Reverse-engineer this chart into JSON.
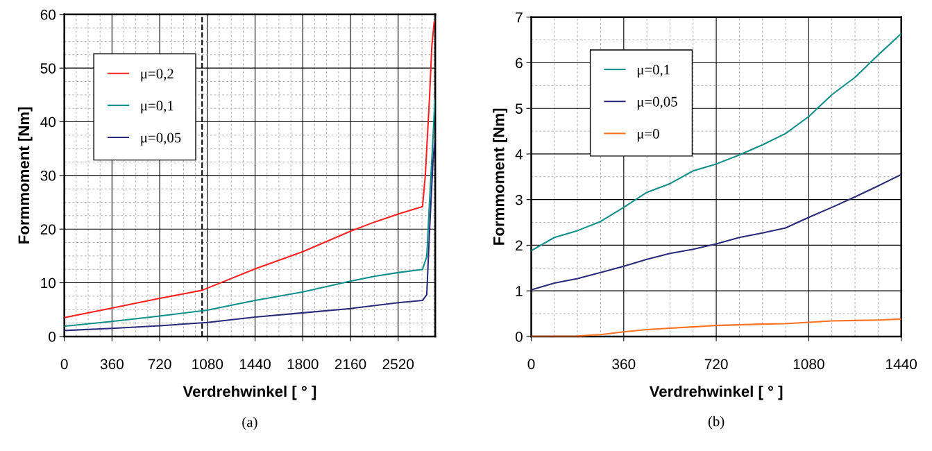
{
  "chart_data": [
    {
      "type": "line",
      "xlabel": "Verdrehwinkel [ ° ]",
      "ylabel": "Formmoment [Nm]",
      "annotations": [
        "(a)"
      ],
      "legend": "top left",
      "grid": true,
      "line_style": "solid",
      "marker": "none",
      "xlim": [
        0,
        2800
      ],
      "ylim": [
        0,
        60
      ],
      "xticks": [
        0,
        360,
        720,
        1080,
        1440,
        1800,
        2160,
        2520,
        {
          "value": 90,
          "label": null
        },
        {
          "value": 180,
          "label": null
        },
        {
          "value": 270,
          "label": null
        },
        {
          "value": 450,
          "label": null
        },
        {
          "value": 540,
          "label": null
        },
        {
          "value": 630,
          "label": null
        },
        {
          "value": 810,
          "label": null
        },
        {
          "value": 900,
          "label": null
        },
        {
          "value": 990,
          "label": null
        },
        {
          "value": 1170,
          "label": null
        },
        {
          "value": 1260,
          "label": null
        },
        {
          "value": 1350,
          "label": null
        },
        {
          "value": 1530,
          "label": null
        },
        {
          "value": 1620,
          "label": null
        },
        {
          "value": 1710,
          "label": null
        },
        {
          "value": 1890,
          "label": null
        },
        {
          "value": 1980,
          "label": null
        },
        {
          "value": 2070,
          "label": null
        },
        {
          "value": 2250,
          "label": null
        },
        {
          "value": 2340,
          "label": null
        },
        {
          "value": 2430,
          "label": null
        },
        {
          "value": 2610,
          "label": null
        },
        {
          "value": 2700,
          "label": null
        },
        {
          "value": 2790,
          "label": null
        }
      ],
      "yticks": [
        0,
        10,
        20,
        30,
        40,
        50,
        60,
        {
          "value": 2.5,
          "label": null
        },
        {
          "value": 5,
          "label": null
        },
        {
          "value": 7.5,
          "label": null
        },
        {
          "value": 12.5,
          "label": null
        },
        {
          "value": 15,
          "label": null
        },
        {
          "value": 17.5,
          "label": null
        },
        {
          "value": 22.5,
          "label": null
        },
        {
          "value": 25,
          "label": null
        },
        {
          "value": 27.5,
          "label": null
        },
        {
          "value": 32.5,
          "label": null
        },
        {
          "value": 35,
          "label": null
        },
        {
          "value": 37.5,
          "label": null
        },
        {
          "value": 42.5,
          "label": null
        },
        {
          "value": 45,
          "label": null
        },
        {
          "value": 47.5,
          "label": null
        },
        {
          "value": 52.5,
          "label": null
        },
        {
          "value": 55,
          "label": null
        },
        {
          "value": 57.5,
          "label": null
        }
      ],
      "ref_lines": [
        {
          "axis": "x",
          "value": 1040,
          "color": "#000000",
          "line_style": "dashed"
        }
      ],
      "series": [
        {
          "name": "μ=0,2",
          "color": "#ff2020",
          "x": [
            0,
            360,
            720,
            1040,
            1440,
            1800,
            2160,
            2340,
            2520,
            2704,
            2725,
            2757,
            2774,
            2792
          ],
          "values": [
            3.5,
            5.3,
            7.1,
            8.6,
            12.6,
            15.8,
            19.6,
            21.3,
            22.8,
            24.2,
            30,
            44.6,
            54,
            58.6
          ]
        },
        {
          "name": "μ=0,1",
          "color": "#10908a",
          "x": [
            0,
            360,
            720,
            1080,
            1440,
            1800,
            2160,
            2340,
            2520,
            2704,
            2736,
            2757,
            2783,
            2797
          ],
          "values": [
            1.9,
            2.8,
            3.8,
            4.9,
            6.7,
            8.3,
            10.3,
            11.2,
            11.9,
            12.5,
            14.9,
            25.2,
            36.9,
            44
          ]
        },
        {
          "name": "μ=0,05",
          "color": "#2a2a7a",
          "x": [
            0,
            360,
            720,
            1080,
            1440,
            1800,
            2160,
            2520,
            2704,
            2736,
            2757,
            2783,
            2795
          ],
          "values": [
            1.1,
            1.5,
            2.0,
            2.6,
            3.6,
            4.4,
            5.2,
            6.3,
            6.7,
            7.8,
            19.7,
            32.6,
            36
          ]
        }
      ]
    },
    {
      "type": "line",
      "xlabel": "Verdrehwinkel [ ° ]",
      "ylabel": "Formmoment [Nm]",
      "annotations": [
        "(b)"
      ],
      "legend": "top left",
      "grid": true,
      "line_style": "solid",
      "marker": "none",
      "xlim": [
        0,
        1440
      ],
      "ylim": [
        0,
        7
      ],
      "xticks": [
        0,
        360,
        720,
        1080,
        1440,
        {
          "value": 90,
          "label": null
        },
        {
          "value": 180,
          "label": null
        },
        {
          "value": 270,
          "label": null
        },
        {
          "value": 450,
          "label": null
        },
        {
          "value": 540,
          "label": null
        },
        {
          "value": 630,
          "label": null
        },
        {
          "value": 810,
          "label": null
        },
        {
          "value": 900,
          "label": null
        },
        {
          "value": 990,
          "label": null
        },
        {
          "value": 1170,
          "label": null
        },
        {
          "value": 1260,
          "label": null
        },
        {
          "value": 1350,
          "label": null
        }
      ],
      "yticks": [
        0,
        1,
        2,
        3,
        4,
        5,
        6,
        7,
        {
          "value": 0.5,
          "label": null
        },
        {
          "value": 1.5,
          "label": null
        },
        {
          "value": 2.5,
          "label": null
        },
        {
          "value": 3.5,
          "label": null
        },
        {
          "value": 4.5,
          "label": null
        },
        {
          "value": 5.5,
          "label": null
        },
        {
          "value": 6.5,
          "label": null
        }
      ],
      "series": [
        {
          "name": "μ=0,1",
          "color": "#10908a",
          "x": [
            0,
            90,
            180,
            270,
            360,
            450,
            540,
            630,
            720,
            810,
            900,
            990,
            1080,
            1170,
            1260,
            1350,
            1440
          ],
          "values": [
            1.88,
            2.17,
            2.32,
            2.52,
            2.83,
            3.16,
            3.35,
            3.63,
            3.78,
            3.98,
            4.2,
            4.45,
            4.82,
            5.3,
            5.68,
            6.17,
            6.64
          ]
        },
        {
          "name": "μ=0,05",
          "color": "#2a2a7a",
          "x": [
            0,
            90,
            180,
            270,
            360,
            450,
            540,
            630,
            720,
            810,
            900,
            990,
            1080,
            1170,
            1260,
            1350,
            1440
          ],
          "values": [
            1.02,
            1.17,
            1.27,
            1.4,
            1.54,
            1.69,
            1.82,
            1.91,
            2.03,
            2.17,
            2.27,
            2.38,
            2.61,
            2.83,
            3.06,
            3.3,
            3.55
          ]
        },
        {
          "name": "μ=0",
          "color": "#ff7020",
          "x": [
            0,
            180,
            270,
            360,
            450,
            540,
            630,
            720,
            900,
            990,
            1080,
            1170,
            1260,
            1350,
            1440
          ],
          "values": [
            0,
            0.01,
            0.04,
            0.1,
            0.15,
            0.18,
            0.21,
            0.24,
            0.27,
            0.28,
            0.31,
            0.34,
            0.35,
            0.36,
            0.38
          ]
        }
      ]
    }
  ]
}
